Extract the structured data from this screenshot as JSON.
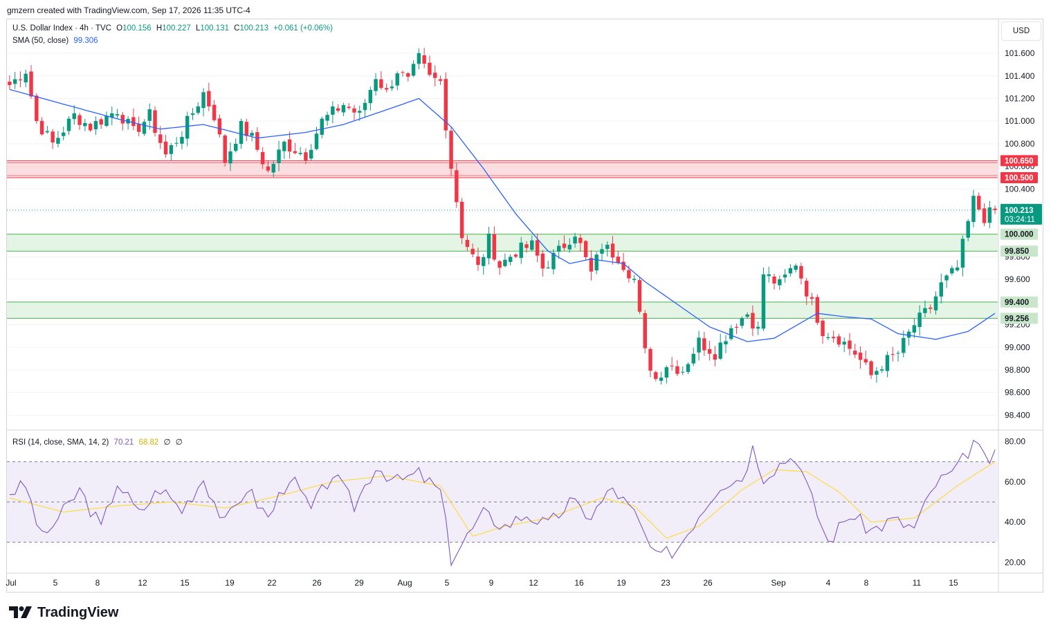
{
  "header": {
    "credit": "gmzern created with TradingView.com, Sep 17, 2026 11:35 UTC-4"
  },
  "legend": {
    "symbol": "U.S. Dollar Index · 4h · TVC",
    "o_label": "O",
    "o": "100.156",
    "h_label": "H",
    "h": "100.227",
    "l_label": "L",
    "l": "100.131",
    "c_label": "C",
    "c": "100.213",
    "change": "+0.061 (+0.06%)",
    "sma_label": "SMA (50, close)",
    "sma_value": "99.306",
    "rsi_label": "RSI (14, close, SMA, 14, 2)",
    "rsi_value": "70.21",
    "rsi_ma_value": "68.82",
    "rsi_extra1": "∅",
    "rsi_extra2": "∅"
  },
  "currency_button": "USD",
  "brand": "TradingView",
  "colors": {
    "up": "#089981",
    "down": "#f23645",
    "sma": "#2962ff",
    "rsi": "#7e57c2",
    "rsi_ma": "#fbdc4f",
    "resistance_fill": "#fdd6d8",
    "support_fill": "#dff2df",
    "resistance_line": "#f23645",
    "support_line": "#4caf50",
    "price_tag": "#089981"
  },
  "chart_data": {
    "type": "candlestick",
    "timeframe": "4h",
    "y_ticks": [
      "101.600",
      "101.400",
      "101.200",
      "101.000",
      "100.800",
      "100.600",
      "100.400",
      "100.200",
      "100.000",
      "99.800",
      "99.600",
      "99.400",
      "99.200",
      "99.000",
      "98.800",
      "98.600",
      "98.400"
    ],
    "ylim": [
      98.28,
      101.9
    ],
    "x_ticks": [
      "Jul",
      "5",
      "8",
      "12",
      "15",
      "19",
      "22",
      "26",
      "29",
      "Aug",
      "5",
      "9",
      "12",
      "16",
      "19",
      "23",
      "26",
      "Sep",
      "4",
      "8",
      "11",
      "15"
    ],
    "zones": [
      {
        "kind": "resistance",
        "from": 100.5,
        "to": 100.65,
        "labels": [
          "100.650",
          "100.500"
        ]
      },
      {
        "kind": "support",
        "from": 99.85,
        "to": 100.0,
        "labels": [
          "100.000",
          "99.850"
        ]
      },
      {
        "kind": "support",
        "from": 99.256,
        "to": 99.4,
        "labels": [
          "99.400",
          "99.256"
        ]
      }
    ],
    "last_price": {
      "value": "100.213",
      "countdown": "03:24:11"
    },
    "path_anchors": [
      [
        0,
        101.32
      ],
      [
        3,
        101.45
      ],
      [
        5,
        101.0
      ],
      [
        8,
        100.8
      ],
      [
        12,
        101.05
      ],
      [
        15,
        100.95
      ],
      [
        20,
        101.1
      ],
      [
        23,
        100.9
      ],
      [
        26,
        101.05
      ],
      [
        29,
        100.7
      ],
      [
        32,
        100.9
      ],
      [
        36,
        101.25
      ],
      [
        38,
        101.05
      ],
      [
        40,
        100.65
      ],
      [
        43,
        100.95
      ],
      [
        45,
        100.85
      ],
      [
        48,
        100.55
      ],
      [
        51,
        100.8
      ],
      [
        55,
        100.7
      ],
      [
        58,
        101.0
      ],
      [
        62,
        101.15
      ],
      [
        65,
        101.05
      ],
      [
        68,
        101.4
      ],
      [
        70,
        101.25
      ],
      [
        72,
        101.45
      ],
      [
        74,
        101.35
      ],
      [
        76,
        101.55
      ],
      [
        78,
        101.38
      ],
      [
        80,
        101.35
      ],
      [
        82,
        100.6
      ],
      [
        84,
        100.0
      ],
      [
        87,
        99.7
      ],
      [
        89,
        99.95
      ],
      [
        91,
        99.72
      ],
      [
        94,
        99.85
      ],
      [
        97,
        99.9
      ],
      [
        99,
        99.7
      ],
      [
        102,
        99.85
      ],
      [
        105,
        100.02
      ],
      [
        108,
        99.65
      ],
      [
        110,
        99.9
      ],
      [
        113,
        99.8
      ],
      [
        116,
        99.6
      ],
      [
        118,
        98.95
      ],
      [
        120,
        98.72
      ],
      [
        122,
        98.85
      ],
      [
        125,
        98.8
      ],
      [
        128,
        99.05
      ],
      [
        131,
        98.95
      ],
      [
        134,
        99.18
      ],
      [
        137,
        99.3
      ],
      [
        139,
        99.15
      ],
      [
        140,
        99.65
      ],
      [
        143,
        99.55
      ],
      [
        146,
        99.75
      ],
      [
        148,
        99.5
      ],
      [
        151,
        99.15
      ],
      [
        154,
        99.08
      ],
      [
        157,
        98.95
      ],
      [
        160,
        98.75
      ],
      [
        162,
        98.85
      ],
      [
        165,
        98.95
      ],
      [
        168,
        99.2
      ],
      [
        171,
        99.35
      ],
      [
        173,
        99.55
      ],
      [
        176,
        99.7
      ],
      [
        179,
        100.3
      ],
      [
        181,
        100.15
      ],
      [
        183,
        100.21
      ]
    ],
    "sma_points": [
      [
        0,
        101.28
      ],
      [
        10,
        101.15
      ],
      [
        20,
        101.02
      ],
      [
        28,
        100.93
      ],
      [
        36,
        100.97
      ],
      [
        46,
        100.85
      ],
      [
        55,
        100.9
      ],
      [
        62,
        100.97
      ],
      [
        70,
        101.1
      ],
      [
        76,
        101.2
      ],
      [
        82,
        100.95
      ],
      [
        88,
        100.58
      ],
      [
        94,
        100.18
      ],
      [
        100,
        99.85
      ],
      [
        104,
        99.74
      ],
      [
        108,
        99.78
      ],
      [
        114,
        99.74
      ],
      [
        118,
        99.58
      ],
      [
        124,
        99.38
      ],
      [
        130,
        99.18
      ],
      [
        137,
        99.05
      ],
      [
        142,
        99.08
      ],
      [
        150,
        99.3
      ],
      [
        155,
        99.27
      ],
      [
        160,
        99.25
      ],
      [
        165,
        99.12
      ],
      [
        172,
        99.07
      ],
      [
        178,
        99.14
      ],
      [
        183,
        99.3
      ]
    ],
    "rsi": {
      "ylim": [
        15,
        85
      ],
      "ticks": [
        "80.00",
        "60.00",
        "40.00",
        "20.00"
      ],
      "levels": [
        70,
        50,
        30
      ],
      "points": [
        [
          0,
          55
        ],
        [
          3,
          58
        ],
        [
          6,
          32
        ],
        [
          10,
          45
        ],
        [
          13,
          56
        ],
        [
          17,
          37
        ],
        [
          20,
          60
        ],
        [
          24,
          44
        ],
        [
          28,
          57
        ],
        [
          32,
          46
        ],
        [
          36,
          62
        ],
        [
          40,
          39
        ],
        [
          44,
          57
        ],
        [
          48,
          42
        ],
        [
          52,
          63
        ],
        [
          56,
          46
        ],
        [
          60,
          64
        ],
        [
          64,
          48
        ],
        [
          68,
          68
        ],
        [
          72,
          60
        ],
        [
          76,
          64
        ],
        [
          80,
          55
        ],
        [
          82,
          22
        ],
        [
          85,
          33
        ],
        [
          88,
          44
        ],
        [
          92,
          38
        ],
        [
          96,
          44
        ],
        [
          100,
          38
        ],
        [
          104,
          50
        ],
        [
          108,
          43
        ],
        [
          112,
          57
        ],
        [
          116,
          44
        ],
        [
          120,
          22
        ],
        [
          124,
          27
        ],
        [
          128,
          44
        ],
        [
          132,
          59
        ],
        [
          136,
          62
        ],
        [
          138,
          77
        ],
        [
          140,
          63
        ],
        [
          144,
          71
        ],
        [
          146,
          73
        ],
        [
          148,
          58
        ],
        [
          152,
          30
        ],
        [
          156,
          44
        ],
        [
          160,
          36
        ],
        [
          164,
          41
        ],
        [
          168,
          37
        ],
        [
          172,
          59
        ],
        [
          176,
          66
        ],
        [
          179,
          80
        ],
        [
          181,
          71
        ],
        [
          183,
          72
        ]
      ],
      "ma_points": [
        [
          0,
          52
        ],
        [
          10,
          45
        ],
        [
          20,
          48
        ],
        [
          30,
          50
        ],
        [
          40,
          47
        ],
        [
          50,
          53
        ],
        [
          60,
          60
        ],
        [
          70,
          63
        ],
        [
          80,
          58
        ],
        [
          86,
          33
        ],
        [
          92,
          38
        ],
        [
          100,
          42
        ],
        [
          110,
          52
        ],
        [
          116,
          48
        ],
        [
          122,
          32
        ],
        [
          128,
          38
        ],
        [
          136,
          56
        ],
        [
          142,
          66
        ],
        [
          148,
          65
        ],
        [
          154,
          55
        ],
        [
          160,
          40
        ],
        [
          168,
          42
        ],
        [
          176,
          58
        ],
        [
          183,
          70
        ]
      ]
    }
  }
}
